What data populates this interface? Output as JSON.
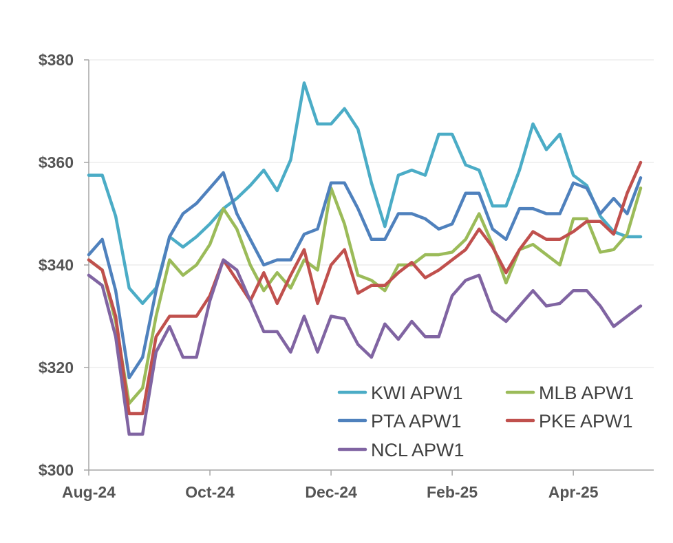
{
  "chart_data": {
    "type": "line",
    "title": "",
    "xlabel": "",
    "ylabel": "",
    "ylim": [
      300,
      380
    ],
    "y_ticks": [
      300,
      320,
      340,
      360,
      380
    ],
    "y_tick_labels": [
      "$300",
      "$320",
      "$340",
      "$360",
      "$380"
    ],
    "x_tick_labels": [
      "Aug-24",
      "Oct-24",
      "Dec-24",
      "Feb-25",
      "Apr-25"
    ],
    "x_tick_index": [
      0,
      9,
      18,
      27,
      36
    ],
    "grid": true,
    "legend_position": "bottom-right",
    "series": [
      {
        "name": "KWI APW1",
        "color": "#4BACC6",
        "values": [
          357.5,
          357.5,
          349.5,
          335.5,
          332.5,
          335.5,
          345.5,
          343.5,
          345.5,
          348,
          351,
          353,
          355.5,
          358.5,
          354.5,
          360.5,
          375.5,
          367.5,
          367.5,
          370.5,
          366.5,
          356,
          347.5,
          357.5,
          358.5,
          357.5,
          365.5,
          365.5,
          359.5,
          358.5,
          351.5,
          351.5,
          358.5,
          367.5,
          362.5,
          365.5,
          357.5,
          355.5,
          349.5,
          346.5,
          345.5,
          345.5
        ]
      },
      {
        "name": "MLB APW1",
        "color": "#9BBB59",
        "values": [
          341,
          339,
          329,
          313,
          316,
          330,
          341,
          338,
          340,
          344,
          351,
          347,
          340,
          335,
          338.5,
          335.5,
          341,
          339,
          355,
          348,
          338,
          337,
          335,
          340,
          340,
          342,
          342,
          342.5,
          345,
          350,
          344,
          336.5,
          343,
          344,
          342,
          340,
          349,
          349,
          342.5,
          343,
          346,
          355
        ]
      },
      {
        "name": "PTA APW1",
        "color": "#4F81BD",
        "values": [
          342,
          345,
          335,
          318,
          322,
          335,
          345.5,
          350,
          352,
          355,
          358,
          350,
          345,
          340,
          341,
          341,
          346,
          347,
          356,
          356,
          351,
          345,
          345,
          350,
          350,
          349,
          347,
          348,
          354,
          354,
          347,
          345,
          351,
          351,
          350,
          350,
          356,
          355,
          350,
          353,
          350,
          357
        ]
      },
      {
        "name": "PKE APW1",
        "color": "#C0504D",
        "values": [
          341,
          339,
          330,
          311,
          311,
          326,
          330,
          330,
          330,
          334,
          341,
          337,
          333,
          338.5,
          332.5,
          338,
          343,
          332.5,
          340,
          343,
          334.5,
          336,
          336,
          338.5,
          340.5,
          337.5,
          339,
          341,
          343,
          347,
          343.5,
          338.5,
          343,
          346.5,
          345,
          345,
          346.5,
          348.5,
          348.5,
          346,
          354,
          360
        ]
      },
      {
        "name": "NCL APW1",
        "color": "#8064A2",
        "values": [
          338,
          336,
          326,
          307,
          307,
          323,
          328,
          322,
          322,
          333,
          341,
          339,
          333,
          327,
          327,
          323,
          330,
          323,
          330,
          329.5,
          324.5,
          322,
          328.5,
          325.5,
          329,
          326,
          326,
          334,
          337,
          338,
          331,
          329,
          332,
          335,
          332,
          332.5,
          335,
          335,
          332,
          328,
          330,
          332
        ]
      }
    ]
  }
}
